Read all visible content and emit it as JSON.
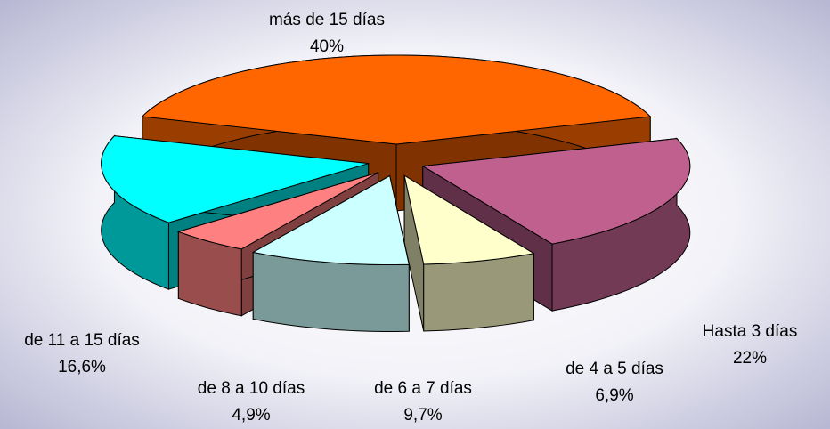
{
  "chart_data": {
    "type": "pie3d",
    "categories": [
      "más de 15 días",
      "Hasta 3 días",
      "de 4 a 5 días",
      "de 6 a 7 días",
      "de 8 a 10 días",
      "de 11 a 15 días"
    ],
    "values": [
      40,
      22,
      6.9,
      9.7,
      4.9,
      16.6
    ],
    "value_labels": [
      "40%",
      "22%",
      "6,9%",
      "9,7%",
      "4,9%",
      "16,6%"
    ],
    "colors": [
      "#ff6600",
      "#c0608f",
      "#ffffcc",
      "#ccffff",
      "#ff8080",
      "#00ffff"
    ]
  }
}
